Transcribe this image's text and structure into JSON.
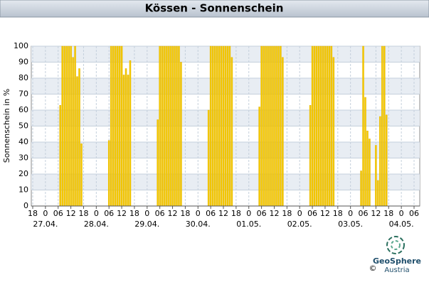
{
  "chart_data": {
    "type": "bar",
    "title": "Kössen - Sonnenschein",
    "ylabel": "Sonnenschein in %",
    "x": [
      13,
      14,
      15,
      16,
      17,
      18,
      19,
      20,
      21,
      22,
      23,
      36,
      37,
      38,
      39,
      40,
      41,
      42,
      43,
      44,
      45,
      46,
      59,
      60,
      61,
      62,
      63,
      64,
      65,
      66,
      67,
      68,
      69,
      70,
      83,
      84,
      85,
      86,
      87,
      88,
      89,
      90,
      91,
      92,
      93,
      94,
      107,
      108,
      109,
      110,
      111,
      112,
      113,
      114,
      115,
      116,
      117,
      118,
      131,
      132,
      133,
      134,
      135,
      136,
      137,
      138,
      139,
      140,
      141,
      142,
      155,
      156,
      157,
      158,
      159,
      162,
      163,
      164,
      165,
      166,
      167
    ],
    "values": [
      63,
      100,
      100,
      100,
      100,
      100,
      93,
      100,
      81,
      86,
      39,
      41,
      100,
      100,
      100,
      100,
      100,
      100,
      82,
      86,
      82,
      91,
      54,
      100,
      100,
      100,
      100,
      100,
      100,
      100,
      100,
      100,
      100,
      90,
      60,
      100,
      100,
      100,
      100,
      100,
      100,
      100,
      100,
      100,
      100,
      93,
      62,
      100,
      100,
      100,
      100,
      100,
      100,
      100,
      100,
      100,
      100,
      93,
      63,
      100,
      100,
      100,
      100,
      100,
      100,
      100,
      100,
      100,
      100,
      93,
      22,
      100,
      68,
      47,
      42,
      38,
      16,
      56,
      100,
      100,
      57
    ],
    "color": "#f7cc00",
    "xlim": [
      0,
      180
    ],
    "xticks": [
      {
        "value": 0,
        "label": "18"
      },
      {
        "value": 6,
        "label": "0"
      },
      {
        "value": 12,
        "label": "06"
      },
      {
        "value": 18,
        "label": "12"
      },
      {
        "value": 24,
        "label": "18"
      },
      {
        "value": 30,
        "label": "0"
      },
      {
        "value": 36,
        "label": "06"
      },
      {
        "value": 42,
        "label": "12"
      },
      {
        "value": 48,
        "label": "18"
      },
      {
        "value": 54,
        "label": "0"
      },
      {
        "value": 60,
        "label": "06"
      },
      {
        "value": 66,
        "label": "12"
      },
      {
        "value": 72,
        "label": "18"
      },
      {
        "value": 78,
        "label": "0"
      },
      {
        "value": 84,
        "label": "06"
      },
      {
        "value": 90,
        "label": "12"
      },
      {
        "value": 96,
        "label": "18"
      },
      {
        "value": 102,
        "label": "0"
      },
      {
        "value": 108,
        "label": "06"
      },
      {
        "value": 114,
        "label": "12"
      },
      {
        "value": 120,
        "label": "18"
      },
      {
        "value": 126,
        "label": "0"
      },
      {
        "value": 132,
        "label": "06"
      },
      {
        "value": 138,
        "label": "12"
      },
      {
        "value": 144,
        "label": "18"
      },
      {
        "value": 150,
        "label": "0"
      },
      {
        "value": 156,
        "label": "06"
      },
      {
        "value": 162,
        "label": "12"
      },
      {
        "value": 168,
        "label": "18"
      },
      {
        "value": 174,
        "label": "0"
      },
      {
        "value": 180,
        "label": "06"
      }
    ],
    "date_labels": [
      {
        "value": 6,
        "label": "27.04."
      },
      {
        "value": 30,
        "label": "28.04."
      },
      {
        "value": 54,
        "label": "29.04."
      },
      {
        "value": 78,
        "label": "30.04."
      },
      {
        "value": 102,
        "label": "01.05."
      },
      {
        "value": 126,
        "label": "02.05."
      },
      {
        "value": 150,
        "label": "03.05."
      },
      {
        "value": 174,
        "label": "04.05."
      }
    ],
    "ylim": [
      0,
      100
    ],
    "yticks": [
      0,
      10,
      20,
      30,
      40,
      50,
      60,
      70,
      80,
      90,
      100
    ],
    "grid": true
  },
  "logo": {
    "name": "GeoSphere",
    "sub": "Austria",
    "copyright": "©"
  }
}
